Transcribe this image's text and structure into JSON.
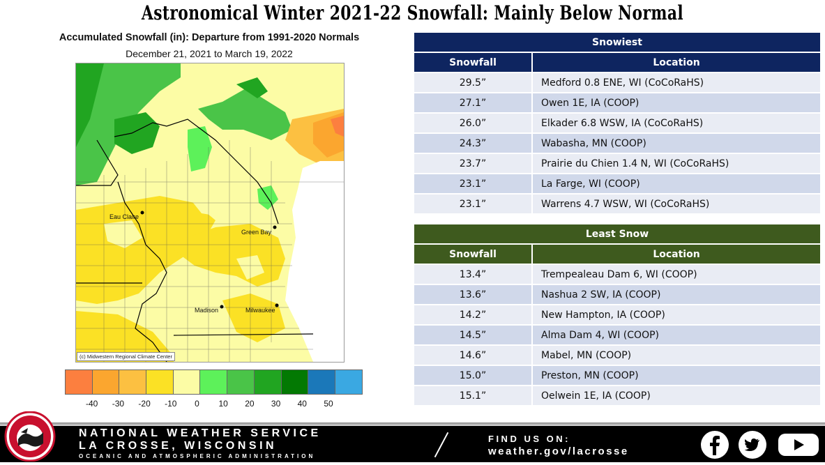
{
  "title": "Astronomical Winter 2021-22 Snowfall:  Mainly Below Normal",
  "map": {
    "title": "Accumulated Snowfall (in): Departure from 1991-2020 Normals",
    "date_range": "December 21, 2021 to March 19, 2022",
    "credit": "(c) Midwestern Regional Climate Center",
    "cities": [
      "Eau Claire",
      "Green Bay",
      "Madison",
      "Milwaukee"
    ]
  },
  "legend": {
    "colors": [
      "#fc7f3f",
      "#fba62f",
      "#fcc041",
      "#fbe125",
      "#fcfca5",
      "#5df15a",
      "#4ac448",
      "#21a521",
      "#037903",
      "#1b78b9",
      "#3aa8e2"
    ],
    "ticks": [
      "-40",
      "-30",
      "-20",
      "-10",
      "0",
      "10",
      "20",
      "30",
      "40",
      "50"
    ]
  },
  "snowiest": {
    "header": "Snowiest",
    "col_snowfall": "Snowfall",
    "col_location": "Location",
    "rows": [
      {
        "snowfall": "29.5”",
        "location": "Medford 0.8 ENE, WI (CoCoRaHS)"
      },
      {
        "snowfall": "27.1”",
        "location": "Owen 1E, IA (COOP)"
      },
      {
        "snowfall": "26.0”",
        "location": "Elkader 6.8 WSW, IA (CoCoRaHS)"
      },
      {
        "snowfall": "24.3”",
        "location": "Wabasha, MN (COOP)"
      },
      {
        "snowfall": "23.7”",
        "location": "Prairie du Chien 1.4 N, WI (CoCoRaHS)"
      },
      {
        "snowfall": "23.1”",
        "location": "La Farge, WI (COOP)"
      },
      {
        "snowfall": "23.1”",
        "location": "Warrens 4.7 WSW, WI (CoCoRaHS)"
      }
    ]
  },
  "least": {
    "header": "Least Snow",
    "col_snowfall": "Snowfall",
    "col_location": "Location",
    "rows": [
      {
        "snowfall": "13.4”",
        "location": "Trempealeau Dam 6, WI (COOP)"
      },
      {
        "snowfall": "13.6”",
        "location": "Nashua 2 SW, IA (COOP)"
      },
      {
        "snowfall": "14.2”",
        "location": "New Hampton, IA (COOP)"
      },
      {
        "snowfall": "14.5”",
        "location": "Alma Dam 4, WI (COOP)"
      },
      {
        "snowfall": "14.6”",
        "location": "Mabel, MN (COOP)"
      },
      {
        "snowfall": "15.0”",
        "location": "Preston, MN (COOP)"
      },
      {
        "snowfall": "15.1”",
        "location": "Oelwein 1E, IA (COOP)"
      }
    ]
  },
  "footer": {
    "org": "NATIONAL WEATHER SERVICE",
    "office": "LA CROSSE, WISCONSIN",
    "agency": "OCEANIC AND ATMOSPHERIC ADMINISTRATION",
    "find_us": "FIND US ON:",
    "url": "weather.gov/lacrosse",
    "logo_text": "NATIONAL WEATHER SERVICE LA CROSSE, WI",
    "social_icons": [
      "facebook-icon",
      "twitter-icon",
      "youtube-icon"
    ]
  }
}
